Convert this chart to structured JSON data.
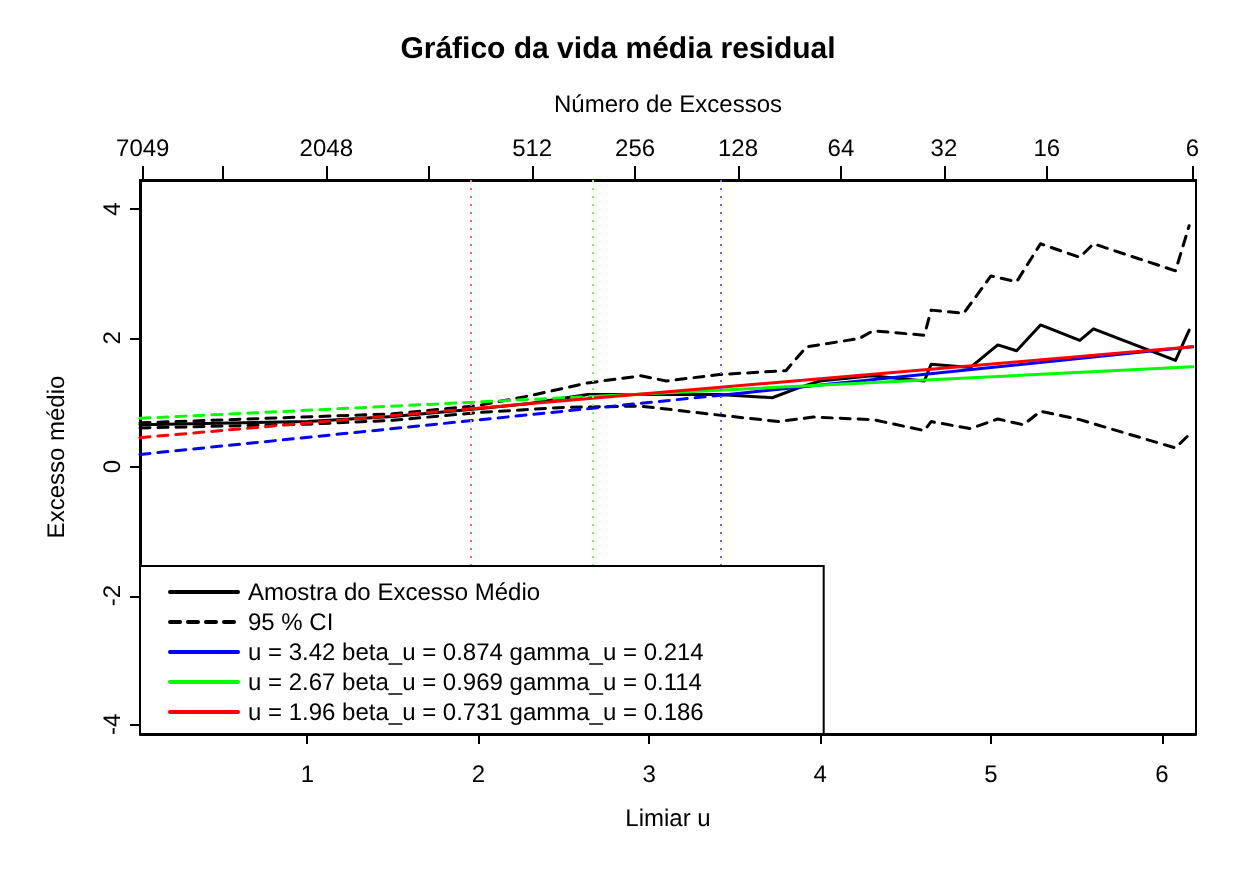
{
  "chart_data": {
    "type": "line",
    "title": "Gráfico da vida média residual",
    "x2label": "Número de Excessos",
    "xlabel": "Limiar u",
    "ylabel": "Excesso médio",
    "xlim": [
      0.02,
      6.2
    ],
    "xticks": [
      1,
      2,
      3,
      4,
      5,
      6
    ],
    "x2lim": [
      7180,
      5.86
    ],
    "x2ticks": [
      7049,
      {
        "value": 4096,
        "label": null
      },
      2048,
      {
        "value": 1024,
        "label": null
      },
      512,
      256,
      128,
      64,
      32,
      16,
      6
    ],
    "log": "x2",
    "ylim": [
      -4.15,
      4.45
    ],
    "yticks": [
      -4,
      -2,
      0,
      2,
      4
    ],
    "grid": false,
    "marker": "none",
    "legend": "bottom left",
    "series": [
      {
        "name": "Amostra do Excesso Médio",
        "color": "#000000",
        "line_style": "solid",
        "x": [
          0.02,
          1.0,
          1.5,
          2.0,
          2.3,
          2.64,
          2.95,
          3.41,
          3.72,
          3.88,
          4.0,
          4.3,
          4.61,
          4.65,
          4.88,
          5.04,
          5.15,
          5.29,
          5.52,
          5.6,
          6.08,
          6.16
        ],
        "values": [
          0.65,
          0.7,
          0.78,
          0.9,
          0.98,
          1.12,
          1.12,
          1.12,
          1.07,
          1.23,
          1.33,
          1.41,
          1.33,
          1.59,
          1.54,
          1.89,
          1.8,
          2.2,
          1.96,
          2.14,
          1.65,
          2.12
        ]
      },
      {
        "name": "95 % CI",
        "color": "#000000",
        "line_style": "dashed",
        "x": [
          0.02,
          1.5,
          2.0,
          2.3,
          2.64,
          2.95,
          3.1,
          3.41,
          3.8,
          3.92,
          4.23,
          4.31,
          4.61,
          4.65,
          4.84,
          5.0,
          5.15,
          5.29,
          5.52,
          5.6,
          6.08,
          6.16
        ],
        "values": [
          0.68,
          0.82,
          0.95,
          1.1,
          1.3,
          1.41,
          1.33,
          1.43,
          1.49,
          1.86,
          1.99,
          2.11,
          2.04,
          2.43,
          2.38,
          2.96,
          2.87,
          3.46,
          3.25,
          3.46,
          3.04,
          3.74
        ]
      },
      {
        "color": "#000000",
        "line_style": "dashed",
        "x": [
          0.02,
          1.0,
          1.5,
          2.0,
          2.5,
          2.95,
          3.41,
          3.76,
          3.96,
          4.31,
          4.61,
          4.65,
          4.88,
          5.04,
          5.19,
          5.29,
          5.52,
          6.08,
          6.16
        ],
        "values": [
          0.6,
          0.66,
          0.72,
          0.84,
          0.92,
          0.94,
          0.8,
          0.7,
          0.77,
          0.73,
          0.56,
          0.7,
          0.59,
          0.74,
          0.65,
          0.86,
          0.73,
          0.29,
          0.5
        ]
      },
      {
        "color": "#0000ff",
        "line_style": "dashed",
        "x": [
          0.02,
          3.42
        ],
        "values": [
          0.19,
          1.11
        ]
      },
      {
        "name": "u = 3.42 beta_u = 0.874 gamma_u = 0.214",
        "color": "#0000ff",
        "line_style": "solid",
        "x": [
          3.42,
          6.18
        ],
        "values": [
          1.11,
          1.86
        ]
      },
      {
        "color": "#00ff00",
        "line_style": "dashed",
        "x": [
          0.02,
          2.67
        ],
        "values": [
          0.75,
          1.09
        ]
      },
      {
        "name": "u = 2.67 beta_u = 0.969 gamma_u = 0.114",
        "color": "#00ff00",
        "line_style": "solid",
        "x": [
          2.67,
          6.18
        ],
        "values": [
          1.09,
          1.55
        ]
      },
      {
        "color": "#ff0000",
        "line_style": "dashed",
        "x": [
          0.02,
          1.96
        ],
        "values": [
          0.45,
          0.9
        ]
      },
      {
        "name": "u = 1.96 beta_u = 0.731 gamma_u = 0.186",
        "color": "#ff0000",
        "line_style": "solid",
        "x": [
          1.96,
          6.18
        ],
        "values": [
          0.9,
          1.86
        ]
      }
    ],
    "ref_lines": [
      {
        "axis": "x",
        "value": 1.96,
        "color": "#ff6666",
        "line_style": "dotted"
      },
      {
        "axis": "x",
        "value": 2.67,
        "color": "#66ff66",
        "line_style": "dotted"
      },
      {
        "axis": "x",
        "value": 3.42,
        "color": "#6666ff",
        "line_style": "dotted"
      }
    ]
  }
}
